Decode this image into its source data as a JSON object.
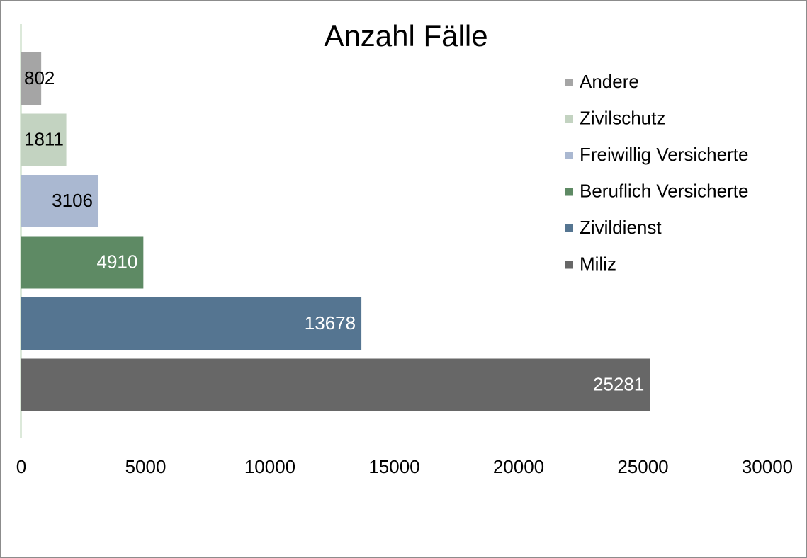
{
  "chart_data": {
    "type": "bar",
    "orientation": "horizontal",
    "title": "Anzahl Fälle",
    "series": [
      {
        "name": "Andere",
        "color": "#a5a5a5",
        "values": [
          802
        ]
      },
      {
        "name": "Zivilschutz",
        "color": "#c3d3c1",
        "values": [
          1811
        ]
      },
      {
        "name": "Freiwillig Versicherte",
        "color": "#aab8d1",
        "values": [
          3106
        ]
      },
      {
        "name": "Beruflich Versicherte",
        "color": "#5e8a64",
        "values": [
          4910
        ]
      },
      {
        "name": "Zivildienst",
        "color": "#557591",
        "values": [
          13678
        ]
      },
      {
        "name": "Miliz",
        "color": "#676767",
        "values": [
          25281
        ]
      }
    ],
    "xlim": [
      0,
      30000
    ],
    "xticks": [
      0,
      5000,
      10000,
      15000,
      20000,
      25000,
      30000
    ],
    "grid": false,
    "legend": "right"
  }
}
